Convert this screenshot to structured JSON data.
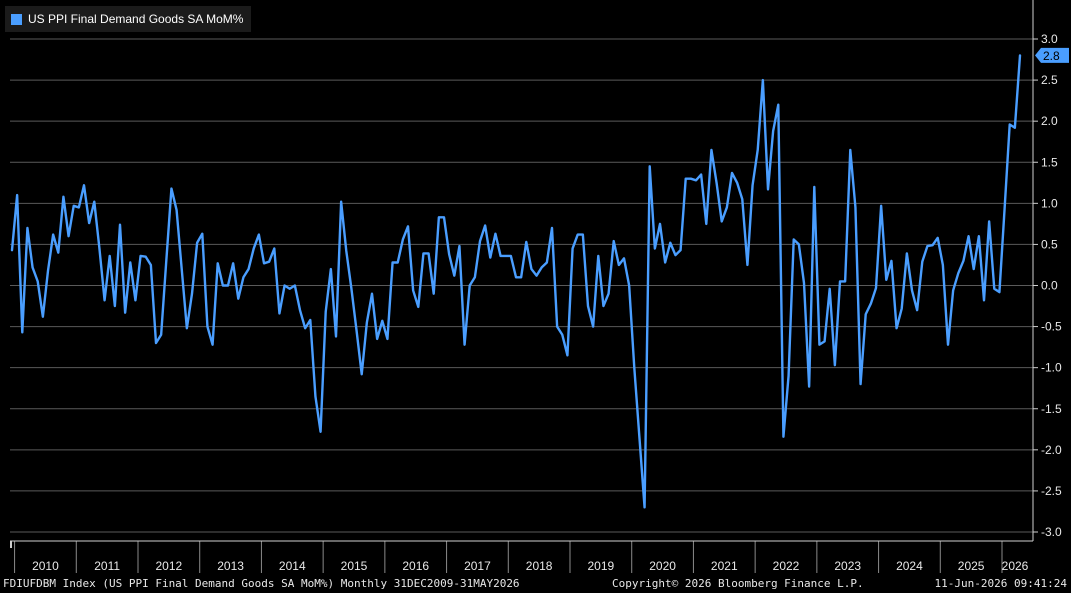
{
  "legend": {
    "label": "US PPI Final Demand Goods SA MoM%",
    "color": "#4a9eff"
  },
  "footer": {
    "left": "FDIUFDBM Index (US PPI Final Demand Goods SA MoM%) Monthly 31DEC2009-31MAY2026",
    "center": "Copyright© 2026 Bloomberg Finance L.P.",
    "right": "11-Jun-2026 09:41:24"
  },
  "chart_data": {
    "type": "line",
    "title": "",
    "xlabel": "",
    "ylabel": "",
    "x_start": "2009-12",
    "x_end": "2026-05",
    "ylim": [
      -3.0,
      3.0
    ],
    "yticks": [
      3.0,
      2.5,
      2.0,
      1.5,
      1.0,
      0.5,
      0.0,
      -0.5,
      -1.0,
      -1.5,
      -2.0,
      -2.5,
      -3.0
    ],
    "ytick_labels": [
      "3.0",
      "2.5",
      "2.0",
      "1.5",
      "1.0",
      "0.5",
      "0.0",
      "-0.5",
      "-1.0",
      "-1.5",
      "-2.0",
      "-2.5",
      "-3.0"
    ],
    "xtick_labels": [
      "2010",
      "2011",
      "2012",
      "2013",
      "2014",
      "2015",
      "2016",
      "2017",
      "2018",
      "2019",
      "2020",
      "2021",
      "2022",
      "2023",
      "2024",
      "2025",
      "2026"
    ],
    "grid": true,
    "legend_position": "top-left",
    "last_value_label": "2.8",
    "series": [
      {
        "name": "US PPI Final Demand Goods SA MoM%",
        "color": "#4a9eff",
        "values": [
          0.43,
          1.1,
          -0.57,
          0.7,
          0.22,
          0.05,
          -0.38,
          0.18,
          0.62,
          0.4,
          1.08,
          0.6,
          0.97,
          0.95,
          1.22,
          0.76,
          1.02,
          0.45,
          -0.18,
          0.36,
          -0.25,
          0.74,
          -0.33,
          0.28,
          -0.18,
          0.36,
          0.35,
          0.25,
          -0.7,
          -0.6,
          0.3,
          1.18,
          0.92,
          0.2,
          -0.52,
          -0.1,
          0.52,
          0.63,
          -0.5,
          -0.72,
          0.27,
          0.0,
          0.0,
          0.27,
          -0.16,
          0.1,
          0.2,
          0.45,
          0.62,
          0.27,
          0.29,
          0.45,
          -0.34,
          0.0,
          -0.04,
          0.0,
          -0.3,
          -0.52,
          -0.42,
          -1.35,
          -1.78,
          -0.32,
          0.2,
          -0.62,
          1.02,
          0.42,
          -0.04,
          -0.55,
          -1.08,
          -0.45,
          -0.1,
          -0.65,
          -0.43,
          -0.65,
          0.28,
          0.28,
          0.56,
          0.72,
          -0.06,
          -0.26,
          0.39,
          0.39,
          -0.1,
          0.83,
          0.83,
          0.38,
          0.12,
          0.48,
          -0.72,
          0.0,
          0.1,
          0.54,
          0.73,
          0.34,
          0.63,
          0.36,
          0.36,
          0.36,
          0.1,
          0.1,
          0.53,
          0.2,
          0.12,
          0.22,
          0.28,
          0.7,
          -0.5,
          -0.6,
          -0.85,
          0.45,
          0.62,
          0.62,
          -0.25,
          -0.5,
          0.36,
          -0.25,
          -0.1,
          0.54,
          0.25,
          0.33,
          0.0,
          -1.0,
          -1.85,
          -2.7,
          1.45,
          0.45,
          0.75,
          0.28,
          0.52,
          0.37,
          0.43,
          1.3,
          1.3,
          1.28,
          1.35,
          0.75,
          1.65,
          1.25,
          0.78,
          0.95,
          1.37,
          1.25,
          1.05,
          0.25,
          1.22,
          1.65,
          2.5,
          1.17,
          1.88,
          2.2,
          -1.84,
          -1.1,
          0.56,
          0.5,
          0.03,
          -1.23,
          1.2,
          -0.72,
          -0.68,
          -0.04,
          -0.97,
          0.05,
          0.05,
          1.65,
          0.95,
          -1.2,
          -0.35,
          -0.22,
          -0.03,
          0.97,
          0.07,
          0.3,
          -0.52,
          -0.28,
          0.39,
          -0.06,
          -0.3,
          0.29,
          0.48,
          0.49,
          0.58,
          0.25,
          -0.72,
          -0.06,
          0.15,
          0.3,
          0.6,
          0.2,
          0.6,
          -0.18,
          0.78,
          -0.04,
          -0.08,
          0.93,
          1.96,
          1.92,
          2.8
        ]
      }
    ]
  }
}
